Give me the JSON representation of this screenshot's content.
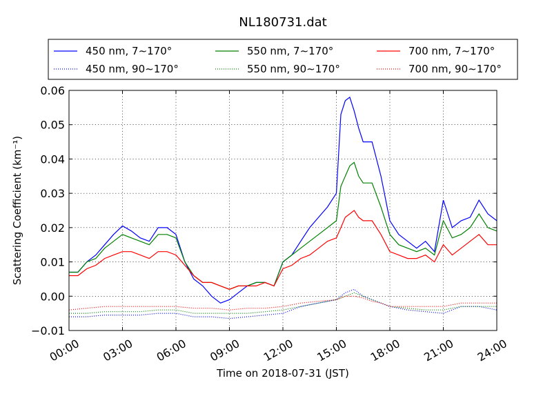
{
  "chart_data": {
    "type": "line",
    "title": "NL180731.dat",
    "xlabel": "Time on 2018-07-31 (JST)",
    "ylabel": "Scattering Coefficient (km⁻¹)",
    "x_ticks": [
      "00:00",
      "03:00",
      "06:00",
      "09:00",
      "12:00",
      "15:00",
      "18:00",
      "21:00",
      "24:00"
    ],
    "y_ticks": [
      "−0.01",
      "0.00",
      "0.01",
      "0.02",
      "0.03",
      "0.04",
      "0.05",
      "0.06"
    ],
    "ylim": [
      -0.01,
      0.06
    ],
    "xlim_hours": [
      0,
      24
    ],
    "grid": true,
    "legend_position": "top, above plot",
    "series": [
      {
        "name": "450 nm, 7∼170°",
        "color": "#0000ff",
        "style": "solid",
        "x": [
          0,
          0.5,
          1,
          1.5,
          2,
          2.5,
          3,
          3.5,
          4,
          4.5,
          5,
          5.5,
          6,
          6.5,
          7,
          7.5,
          8,
          8.5,
          9,
          9.5,
          10,
          10.5,
          11,
          11.5,
          12,
          12.5,
          13,
          13.5,
          14,
          14.5,
          15,
          15.25,
          15.5,
          15.75,
          16,
          16.25,
          16.5,
          17,
          17.5,
          18,
          18.5,
          19,
          19.5,
          20,
          20.5,
          21,
          21.5,
          22,
          22.5,
          23,
          23.5,
          24
        ],
        "y": [
          0.007,
          0.007,
          0.01,
          0.012,
          0.015,
          0.018,
          0.0205,
          0.019,
          0.017,
          0.016,
          0.02,
          0.02,
          0.018,
          0.01,
          0.005,
          0.003,
          0.0,
          -0.002,
          -0.001,
          0.001,
          0.003,
          0.004,
          0.004,
          0.003,
          0.01,
          0.012,
          0.016,
          0.02,
          0.023,
          0.026,
          0.03,
          0.053,
          0.057,
          0.058,
          0.054,
          0.049,
          0.045,
          0.045,
          0.035,
          0.022,
          0.018,
          0.016,
          0.014,
          0.016,
          0.013,
          0.028,
          0.02,
          0.022,
          0.023,
          0.028,
          0.024,
          0.022
        ]
      },
      {
        "name": "550 nm, 7∼170°",
        "color": "#008000",
        "style": "solid",
        "x": [
          0,
          0.5,
          1,
          1.5,
          2,
          2.5,
          3,
          3.5,
          4,
          4.5,
          5,
          5.5,
          6,
          6.5,
          7,
          7.5,
          8,
          8.5,
          9,
          9.5,
          10,
          10.5,
          11,
          11.5,
          12,
          12.5,
          13,
          13.5,
          14,
          14.5,
          15,
          15.25,
          15.5,
          15.75,
          16,
          16.25,
          16.5,
          17,
          17.5,
          18,
          18.5,
          19,
          19.5,
          20,
          20.5,
          21,
          21.5,
          22,
          22.5,
          23,
          23.5,
          24
        ],
        "y": [
          0.007,
          0.007,
          0.01,
          0.011,
          0.014,
          0.016,
          0.018,
          0.017,
          0.016,
          0.015,
          0.018,
          0.018,
          0.017,
          0.01,
          0.006,
          0.004,
          0.004,
          0.003,
          0.002,
          0.003,
          0.003,
          0.004,
          0.004,
          0.003,
          0.01,
          0.012,
          0.014,
          0.016,
          0.018,
          0.02,
          0.022,
          0.032,
          0.035,
          0.038,
          0.039,
          0.035,
          0.033,
          0.033,
          0.026,
          0.018,
          0.015,
          0.014,
          0.013,
          0.014,
          0.012,
          0.022,
          0.017,
          0.018,
          0.02,
          0.024,
          0.02,
          0.019
        ]
      },
      {
        "name": "700 nm, 7∼170°",
        "color": "#ff0000",
        "style": "solid",
        "x": [
          0,
          0.5,
          1,
          1.5,
          2,
          2.5,
          3,
          3.5,
          4,
          4.5,
          5,
          5.5,
          6,
          6.5,
          7,
          7.5,
          8,
          8.5,
          9,
          9.5,
          10,
          10.5,
          11,
          11.5,
          12,
          12.5,
          13,
          13.5,
          14,
          14.5,
          15,
          15.25,
          15.5,
          15.75,
          16,
          16.25,
          16.5,
          17,
          17.5,
          18,
          18.5,
          19,
          19.5,
          20,
          20.5,
          21,
          21.5,
          22,
          22.5,
          23,
          23.5,
          24
        ],
        "y": [
          0.006,
          0.006,
          0.008,
          0.009,
          0.011,
          0.012,
          0.013,
          0.013,
          0.012,
          0.011,
          0.013,
          0.013,
          0.012,
          0.009,
          0.006,
          0.004,
          0.004,
          0.003,
          0.002,
          0.003,
          0.003,
          0.003,
          0.004,
          0.003,
          0.008,
          0.009,
          0.011,
          0.012,
          0.014,
          0.016,
          0.017,
          0.02,
          0.023,
          0.024,
          0.025,
          0.023,
          0.022,
          0.022,
          0.018,
          0.013,
          0.012,
          0.011,
          0.011,
          0.012,
          0.01,
          0.015,
          0.012,
          0.014,
          0.016,
          0.018,
          0.015,
          0.015
        ]
      },
      {
        "name": "450 nm, 90∼170°",
        "color": "#0000ff",
        "style": "dotted",
        "x": [
          0,
          1,
          2,
          3,
          4,
          5,
          6,
          7,
          8,
          9,
          10,
          11,
          12,
          13,
          14,
          15,
          15.5,
          16,
          16.5,
          17,
          17.5,
          18,
          19,
          20,
          21,
          22,
          23,
          24
        ],
        "y": [
          -0.006,
          -0.006,
          -0.0055,
          -0.0055,
          -0.0055,
          -0.005,
          -0.005,
          -0.006,
          -0.006,
          -0.0065,
          -0.006,
          -0.0055,
          -0.005,
          -0.003,
          -0.002,
          -0.001,
          0.001,
          0.002,
          0.0,
          -0.001,
          -0.002,
          -0.003,
          -0.004,
          -0.0045,
          -0.005,
          -0.003,
          -0.003,
          -0.004
        ]
      },
      {
        "name": "550 nm, 90∼170°",
        "color": "#008000",
        "style": "dotted",
        "x": [
          0,
          1,
          2,
          3,
          4,
          5,
          6,
          7,
          8,
          9,
          10,
          11,
          12,
          13,
          14,
          15,
          15.5,
          16,
          16.5,
          17,
          17.5,
          18,
          19,
          20,
          21,
          22,
          23,
          24
        ],
        "y": [
          -0.005,
          -0.005,
          -0.0045,
          -0.0045,
          -0.0045,
          -0.004,
          -0.004,
          -0.005,
          -0.005,
          -0.005,
          -0.005,
          -0.0045,
          -0.004,
          -0.003,
          -0.002,
          -0.001,
          0.0,
          0.001,
          0.0,
          -0.001,
          -0.002,
          -0.003,
          -0.0035,
          -0.004,
          -0.004,
          -0.003,
          -0.003,
          -0.003
        ]
      },
      {
        "name": "700 nm, 90∼170°",
        "color": "#ff0000",
        "style": "dotted",
        "x": [
          0,
          1,
          2,
          3,
          4,
          5,
          6,
          7,
          8,
          9,
          10,
          11,
          12,
          13,
          14,
          15,
          15.5,
          16,
          16.5,
          17,
          17.5,
          18,
          19,
          20,
          21,
          22,
          23,
          24
        ],
        "y": [
          -0.004,
          -0.0035,
          -0.003,
          -0.003,
          -0.003,
          -0.003,
          -0.003,
          -0.0035,
          -0.0035,
          -0.004,
          -0.0035,
          -0.0035,
          -0.003,
          -0.002,
          -0.0015,
          -0.001,
          0.0,
          0.0,
          -0.0005,
          -0.0015,
          -0.002,
          -0.003,
          -0.003,
          -0.003,
          -0.003,
          -0.002,
          -0.002,
          -0.002
        ]
      }
    ]
  }
}
